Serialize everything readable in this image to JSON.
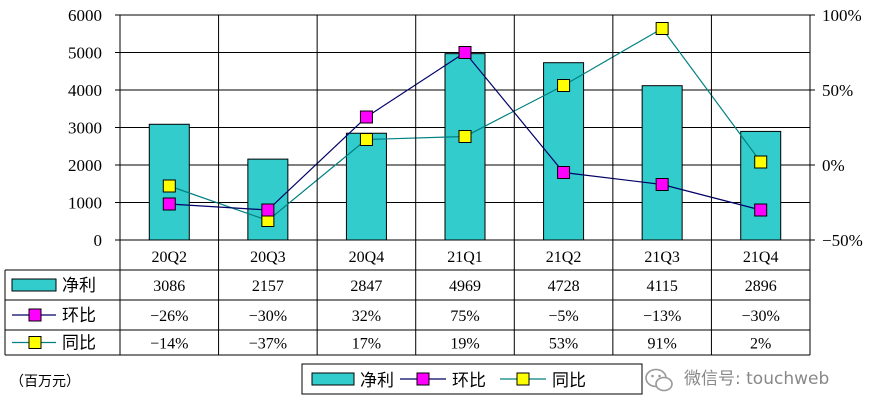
{
  "chart_data": {
    "type": "bar",
    "categories": [
      "20Q2",
      "20Q3",
      "20Q4",
      "21Q1",
      "21Q2",
      "21Q3",
      "21Q4"
    ],
    "series": [
      {
        "name": "净利",
        "type": "bar",
        "axis": "left",
        "values": [
          3086,
          2157,
          2847,
          4969,
          4728,
          4115,
          2896
        ],
        "table_values": [
          "3086",
          "2157",
          "2847",
          "4969",
          "4728",
          "4115",
          "2896"
        ]
      },
      {
        "name": "环比",
        "type": "line",
        "axis": "right",
        "values": [
          -26,
          -30,
          32,
          75,
          -5,
          -13,
          -30
        ],
        "table_values": [
          "-26%",
          "-30%",
          "32%",
          "75%",
          "-5%",
          "-13%",
          "-30%"
        ]
      },
      {
        "name": "同比",
        "type": "line",
        "axis": "right",
        "values": [
          -14,
          -37,
          17,
          19,
          53,
          91,
          2
        ],
        "table_values": [
          "-14%",
          "-37%",
          "17%",
          "19%",
          "53%",
          "91%",
          "2%"
        ]
      }
    ],
    "left_axis": {
      "ylim": [
        0,
        6000
      ],
      "ticks": [
        "0",
        "1000",
        "2000",
        "3000",
        "4000",
        "5000",
        "6000"
      ]
    },
    "right_axis": {
      "ylim": [
        -50,
        100
      ],
      "ticks": [
        "-50%",
        "0%",
        "50%",
        "100%"
      ]
    },
    "unit_note": "（百万元）",
    "grid": true,
    "legend": {
      "placement": "bottom-center",
      "entries": [
        "净利",
        "环比",
        "同比"
      ]
    }
  },
  "colors": {
    "bar": "#33CCCC",
    "huanbi_line": "#000066",
    "huanbi_marker": "#FF00FF",
    "tongbi_line": "#008080",
    "tongbi_marker": "#FFFF00"
  },
  "watermark": {
    "icon": "wechat-icon",
    "text": "微信号: touchweb"
  }
}
